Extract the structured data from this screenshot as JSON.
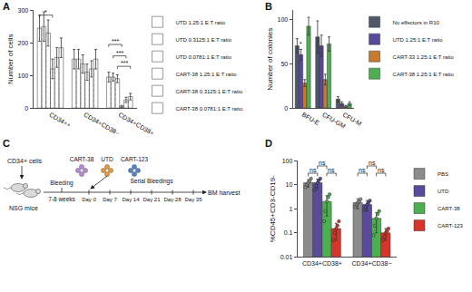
{
  "chart_data": [
    {
      "panel": "A",
      "type": "bar",
      "ylabel": "Number of cells",
      "categories": [
        "CD34++",
        "CD34+CD38−",
        "CD34+CD38+"
      ],
      "ylim": [
        0,
        300
      ],
      "yticks": [
        0,
        100,
        200,
        300
      ],
      "legend": "right",
      "series": [
        {
          "name": "UTD 1.25:1 E:T ratio",
          "color": "#3d2d7a",
          "marker": "hatched",
          "values": [
            245,
            150,
            95
          ],
          "errors": [
            40,
            30,
            15
          ]
        },
        {
          "name": "UTD 0.3125:1 E:T ratio",
          "color": "#6a5aa8",
          "marker": "hatched",
          "values": [
            250,
            150,
            95
          ],
          "errors": [
            45,
            30,
            12
          ]
        },
        {
          "name": "UTD 0.0781:1 E:T ratio",
          "color": "#a99ad0",
          "marker": "hatched",
          "values": [
            230,
            135,
            90
          ],
          "errors": [
            40,
            28,
            12
          ]
        },
        {
          "name": "CART-38 1.25:1 E:T ratio",
          "color": "#2e9e4a",
          "marker": "hatched",
          "values": [
            120,
            110,
            5
          ],
          "errors": [
            30,
            25,
            3
          ]
        },
        {
          "name": "CART-38 0.3125:1 E:T ratio",
          "color": "#5bbf6a",
          "marker": "hatched",
          "values": [
            155,
            120,
            25
          ],
          "errors": [
            30,
            25,
            8
          ]
        },
        {
          "name": "CART-38 0.0781:1 E:T ratio",
          "color": "#9ad99a",
          "marker": "hatched",
          "values": [
            185,
            150,
            35
          ],
          "errors": [
            30,
            30,
            10
          ]
        }
      ],
      "annotations": [
        {
          "text": "*",
          "category": "CD34++",
          "from": "UTD 1.25:1 E:T ratio",
          "to": "CART-38 1.25:1 E:T ratio",
          "y": 285
        },
        {
          "text": "***",
          "category": "CD34+CD38+",
          "from": "UTD 1.25:1 E:T ratio",
          "to": "CART-38 1.25:1 E:T ratio",
          "y": 195
        },
        {
          "text": "***",
          "category": "CD34+CD38+",
          "from": "UTD 0.3125:1 E:T ratio",
          "to": "CART-38 0.3125:1 E:T ratio",
          "y": 160
        },
        {
          "text": "***",
          "category": "CD34+CD38+",
          "from": "UTD 0.0781:1 E:T ratio",
          "to": "CART-38 0.0781:1 E:T ratio",
          "y": 128
        }
      ]
    },
    {
      "panel": "B",
      "type": "bar",
      "ylabel": "Number of colonies",
      "categories": [
        "BFU-E",
        "CFU-GM",
        "CFU-M"
      ],
      "ylim": [
        0,
        110
      ],
      "yticks": [
        0,
        50,
        100
      ],
      "legend": "right",
      "series": [
        {
          "name": "No effectors in R10",
          "color": "#4d5868",
          "values": [
            70,
            80,
            10
          ],
          "errors": [
            8,
            18,
            3
          ]
        },
        {
          "name": "UTD 1.25:1 E:T ratio",
          "color": "#5b4a9b",
          "values": [
            60,
            70,
            5
          ],
          "errors": [
            6,
            12,
            2
          ]
        },
        {
          "name": "CART-33 1.25:1 E:T ratio",
          "color": "#c97a2e",
          "values": [
            28,
            32,
            2
          ],
          "errors": [
            4,
            6,
            1
          ]
        },
        {
          "name": "CART-38 1.25:1 E:T ratio",
          "color": "#4cb050",
          "values": [
            92,
            72,
            5
          ],
          "errors": [
            10,
            8,
            2
          ]
        }
      ],
      "annotations": [
        {
          "text": "*",
          "category": "BFU-E",
          "series": "UTD 1.25:1 E:T ratio",
          "y": 68
        }
      ]
    },
    {
      "panel": "D",
      "type": "bar",
      "ylabel": "%CD45+CD3-CD19-",
      "log": "y",
      "categories": [
        "CD34+CD38+",
        "CD34+CD38−"
      ],
      "ylim": [
        0.01,
        100
      ],
      "yticks": [
        0.01,
        0.1,
        1,
        10,
        100
      ],
      "legend": "right",
      "series": [
        {
          "name": "PBS",
          "color": "#8c8c8c",
          "values": [
            12,
            1.8
          ],
          "errors": [
            4,
            0.8
          ],
          "points": [
            [
              8,
              10,
              12,
              14,
              18
            ],
            [
              1.2,
              1.5,
              1.8,
              2.0,
              2.5
            ]
          ]
        },
        {
          "name": "UTD",
          "color": "#5b4a9b",
          "values": [
            12,
            1.5
          ],
          "errors": [
            5,
            0.7
          ],
          "points": [
            [
              6,
              9,
              12,
              15,
              18
            ],
            [
              0.9,
              1.2,
              1.5,
              1.8,
              2.2
            ]
          ]
        },
        {
          "name": "CART-38",
          "color": "#4cb050",
          "values": [
            2,
            0.4
          ],
          "errors": [
            1.5,
            0.3
          ],
          "points": [
            [
              0.3,
              0.8,
              2,
              3,
              4
            ],
            [
              0.08,
              0.2,
              0.4,
              0.6,
              0.8
            ]
          ]
        },
        {
          "name": "CART-123",
          "color": "#d9342b",
          "values": [
            0.15,
            0.1
          ],
          "errors": [
            0.1,
            0.05
          ],
          "points": [
            [
              0.05,
              0.1,
              0.15,
              0.2,
              0.3
            ],
            [
              0.05,
              0.07,
              0.1,
              0.12,
              0.15
            ]
          ]
        }
      ],
      "annotations": [
        {
          "text": "ns",
          "category": "CD34+CD38+",
          "from": "PBS",
          "to": "UTD",
          "y": 30
        },
        {
          "text": "ns",
          "category": "CD34+CD38+",
          "from": "UTD",
          "to": "CART-38",
          "y": 60
        },
        {
          "text": "ns",
          "category": "CD34+CD38+",
          "from": "CART-38",
          "to": "CART-123",
          "y": 30
        },
        {
          "text": "ns",
          "category": "CD34+CD38−",
          "from": "PBS",
          "to": "UTD",
          "y": 30
        },
        {
          "text": "ns",
          "category": "CD34+CD38−",
          "from": "UTD",
          "to": "CART-38",
          "y": 60
        },
        {
          "text": "ns",
          "category": "CD34+CD38−",
          "from": "CART-38",
          "to": "CART-123",
          "y": 30
        }
      ]
    }
  ],
  "diagram": {
    "panel": "C",
    "source": "CD34+ cells",
    "host": "NSG mice",
    "bleeding": "Bleeding",
    "interval": "7-8 weeks",
    "treatments": [
      "CART-38",
      "UTD",
      "CART-123"
    ],
    "timepoints": [
      "Day 0",
      "Day 7",
      "Day 14",
      "Day 21",
      "Day 28",
      "Day 35"
    ],
    "sampling": "Serial Bleedings",
    "endpoint": "BM harvest"
  }
}
